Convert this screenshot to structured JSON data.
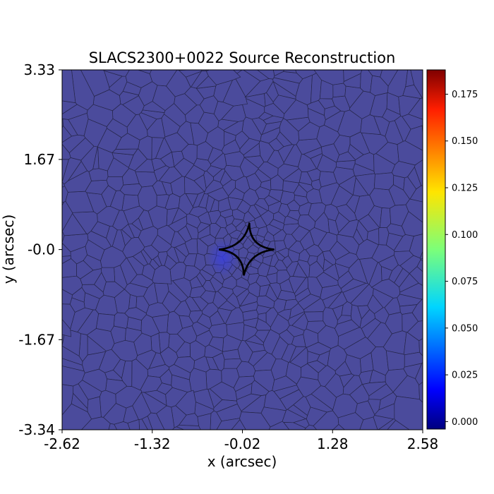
{
  "chart_data": {
    "type": "heatmap",
    "title": "SLACS2300+0022 Source Reconstruction",
    "xlabel": "x (arcsec)",
    "ylabel": "y (arcsec)",
    "xlim": [
      -2.62,
      2.58
    ],
    "ylim": [
      -3.34,
      3.33
    ],
    "xticks": [
      "-2.62",
      "-1.32",
      "-0.02",
      "1.28",
      "2.58"
    ],
    "yticks": [
      "3.33",
      "1.67",
      "-0.0",
      "-1.67",
      "-3.34"
    ],
    "xtick_values": [
      -2.62,
      -1.32,
      -0.02,
      1.28,
      2.58
    ],
    "ytick_values": [
      3.33,
      1.67,
      0.0,
      -1.67,
      -3.34
    ],
    "background_value": 0.02,
    "bright_region": {
      "x": -0.3,
      "y": -0.15,
      "value": 0.035
    },
    "colormap": "jet",
    "colorbar": {
      "range": [
        -0.004,
        0.188
      ],
      "ticks": [
        "0.000",
        "0.025",
        "0.050",
        "0.075",
        "0.100",
        "0.125",
        "0.150",
        "0.175"
      ],
      "tick_values": [
        0.0,
        0.025,
        0.05,
        0.075,
        0.1,
        0.125,
        0.15,
        0.175
      ]
    },
    "caustic": {
      "type": "astroid",
      "center": [
        0.04,
        0.0
      ],
      "cusps": [
        [
          0.08,
          0.48
        ],
        [
          0.44,
          0.0
        ],
        [
          0.0,
          -0.48
        ],
        [
          -0.36,
          0.0
        ]
      ]
    },
    "grid": false,
    "mesh": "voronoi"
  }
}
